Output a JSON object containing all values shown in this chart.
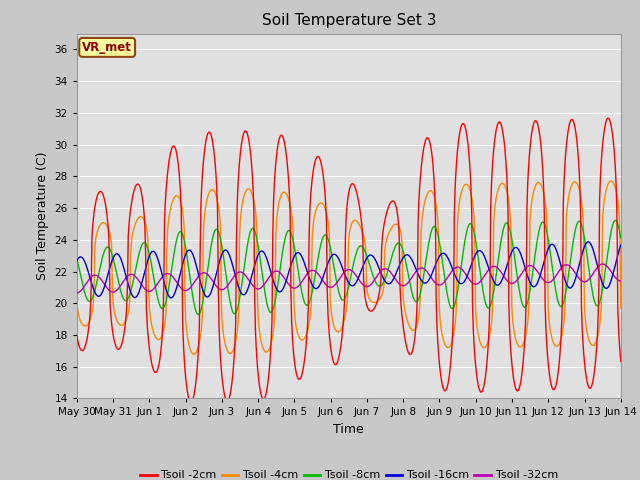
{
  "title": "Soil Temperature Set 3",
  "xlabel": "Time",
  "ylabel": "Soil Temperature (C)",
  "ylim": [
    14,
    37
  ],
  "yticks": [
    14,
    16,
    18,
    20,
    22,
    24,
    26,
    28,
    30,
    32,
    34,
    36
  ],
  "fig_bg_color": "#c8c8c8",
  "plot_bg_color": "#e0e0e0",
  "grid_color": "#ffffff",
  "vr_met_label": "VR_met",
  "series_colors": [
    "#ff0000",
    "#ff8800",
    "#00bb00",
    "#0000dd",
    "#bb00bb"
  ],
  "series_labels": [
    "Tsoil -2cm",
    "Tsoil -4cm",
    "Tsoil -8cm",
    "Tsoil -16cm",
    "Tsoil -32cm"
  ],
  "x_tick_labels": [
    "May 30",
    "May 31",
    "Jun 1",
    "Jun 2",
    "Jun 3",
    "Jun 4",
    "Jun 5",
    "Jun 6",
    "Jun 7",
    "Jun 8",
    "Jun 9",
    "Jun 10",
    "Jun 11",
    "Jun 12",
    "Jun 13",
    "Jun 14"
  ],
  "num_points": 720
}
